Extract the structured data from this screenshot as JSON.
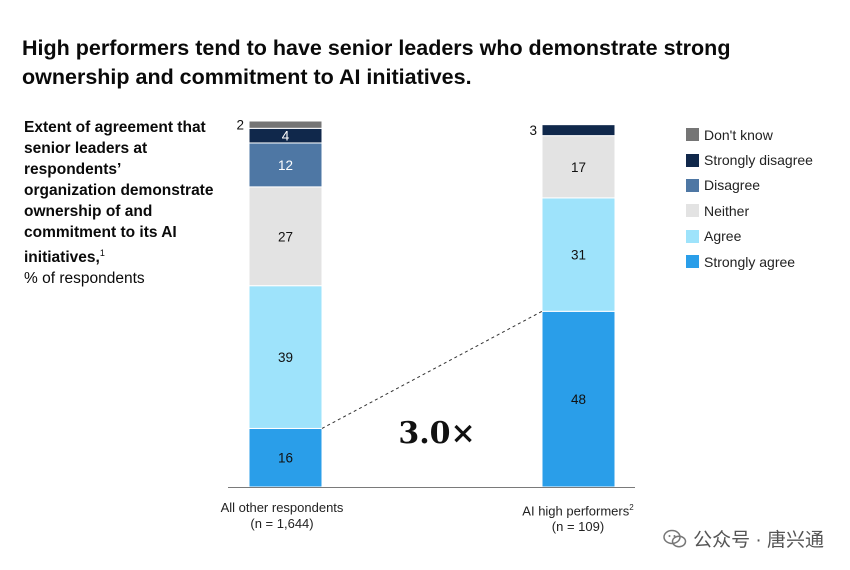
{
  "title": "High performers tend to have senior leaders who demonstrate strong ownership and commitment to AI initiatives.",
  "side_label": {
    "bold": "Extent of agreement that senior leaders at respondents’ organization demonstrate ownership of and commitment to its AI initiatives,",
    "footnote": "1",
    "unit": "% of respondents"
  },
  "watermark": "公众号 · 唐兴通",
  "chart_data": {
    "type": "bar",
    "stacked": true,
    "categories": [
      "All other respondents",
      "AI high performers"
    ],
    "category_footnotes": [
      "",
      "2"
    ],
    "category_n": [
      "(n = 1,644)",
      "(n = 109)"
    ],
    "series": [
      {
        "name": "Strongly agree",
        "color": "#2a9ee9",
        "values": [
          16,
          48
        ]
      },
      {
        "name": "Agree",
        "color": "#9ee3fb",
        "values": [
          39,
          31
        ]
      },
      {
        "name": "Neither",
        "color": "#e3e3e3",
        "values": [
          27,
          17
        ]
      },
      {
        "name": "Disagree",
        "color": "#4e77a4",
        "values": [
          12,
          0
        ]
      },
      {
        "name": "Strongly disagree",
        "color": "#10284b",
        "values": [
          4,
          3
        ]
      },
      {
        "name": "Don't know",
        "color": "#757575",
        "values": [
          2,
          0
        ]
      }
    ],
    "legend_order": [
      "Don't know",
      "Strongly disagree",
      "Disagree",
      "Neither",
      "Agree",
      "Strongly agree"
    ],
    "legend_position": "right",
    "annotation": "3.0×",
    "ylim": [
      0,
      100
    ]
  }
}
